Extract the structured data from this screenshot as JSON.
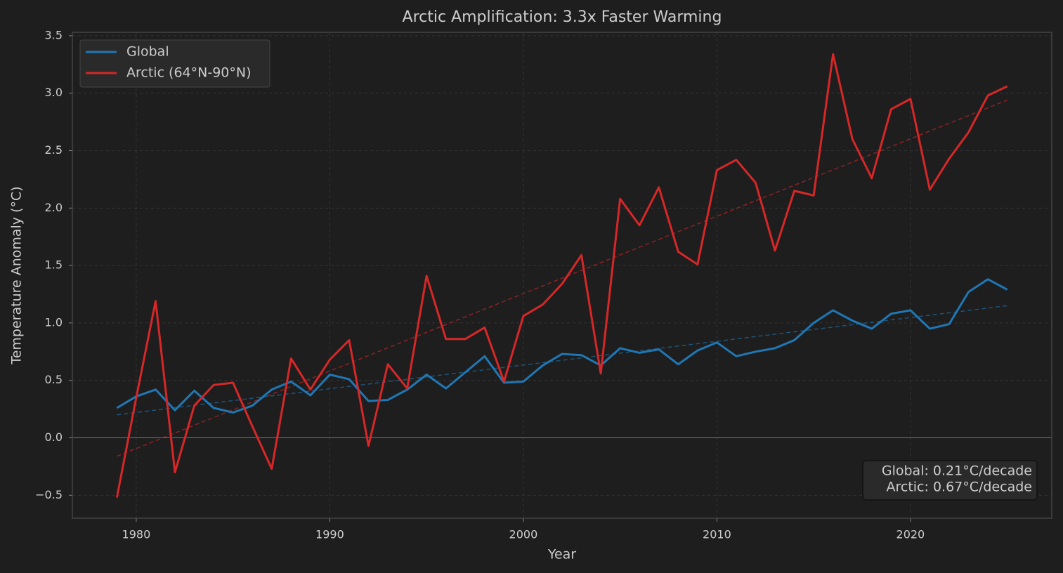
{
  "chart_data": {
    "type": "line",
    "title": "Arctic Amplification: 3.3x Faster Warming",
    "x_label": "Year",
    "y_label": "Temperature Anomaly (°C)",
    "x": [
      1979,
      1980,
      1981,
      1982,
      1983,
      1984,
      1985,
      1986,
      1987,
      1988,
      1989,
      1990,
      1991,
      1992,
      1993,
      1994,
      1995,
      1996,
      1997,
      1998,
      1999,
      2000,
      2001,
      2002,
      2003,
      2004,
      2005,
      2006,
      2007,
      2008,
      2009,
      2010,
      2011,
      2012,
      2013,
      2014,
      2015,
      2016,
      2017,
      2018,
      2019,
      2020,
      2021,
      2022,
      2023,
      2024,
      2025
    ],
    "series": [
      {
        "name": "Global",
        "color": "#1f77b4",
        "values": [
          0.26,
          0.36,
          0.42,
          0.24,
          0.41,
          0.26,
          0.22,
          0.28,
          0.42,
          0.49,
          0.37,
          0.55,
          0.51,
          0.32,
          0.33,
          0.42,
          0.55,
          0.43,
          0.57,
          0.71,
          0.48,
          0.49,
          0.63,
          0.73,
          0.72,
          0.63,
          0.78,
          0.74,
          0.77,
          0.64,
          0.76,
          0.83,
          0.71,
          0.75,
          0.78,
          0.85,
          1.0,
          1.11,
          1.02,
          0.95,
          1.08,
          1.11,
          0.95,
          0.99,
          1.27,
          1.38,
          1.29
        ]
      },
      {
        "name": "Arctic (64°N-90°N)",
        "color": "#d62728",
        "values": [
          -0.52,
          0.35,
          1.19,
          -0.3,
          0.28,
          0.46,
          0.48,
          0.1,
          -0.27,
          0.69,
          0.42,
          0.68,
          0.85,
          -0.07,
          0.64,
          0.43,
          1.41,
          0.86,
          0.86,
          0.96,
          0.49,
          1.06,
          1.16,
          1.34,
          1.59,
          0.56,
          2.08,
          1.85,
          2.18,
          1.62,
          1.51,
          2.33,
          2.42,
          2.22,
          1.63,
          2.15,
          2.11,
          3.34,
          2.6,
          2.26,
          2.86,
          2.95,
          2.16,
          2.43,
          2.66,
          2.98,
          3.06
        ]
      }
    ],
    "trendlines": [
      {
        "color": "#1f77b4",
        "x": [
          1979,
          2025
        ],
        "values": [
          0.2,
          1.15
        ]
      },
      {
        "color": "#d62728",
        "x": [
          1979,
          2025
        ],
        "values": [
          -0.16,
          2.94
        ]
      }
    ],
    "annotation": [
      "Global: 0.21°C/decade",
      "Arctic: 0.67°C/decade"
    ],
    "xlim": [
      1976.7,
      2027.3
    ],
    "ylim": [
      -0.7,
      3.53
    ],
    "xticks": [
      1980,
      1990,
      2000,
      2010,
      2020
    ],
    "yticks": [
      {
        "value": -0.5,
        "label": "−0.5"
      },
      {
        "value": 0,
        "label": "0.0"
      },
      0.5,
      {
        "value": 1,
        "label": "1.0"
      },
      1.5,
      {
        "value": 2,
        "label": "2.0"
      },
      2.5,
      {
        "value": 3,
        "label": "3.0"
      },
      3.5
    ],
    "grid": true,
    "zero_line": true,
    "legend": "upper-left"
  }
}
